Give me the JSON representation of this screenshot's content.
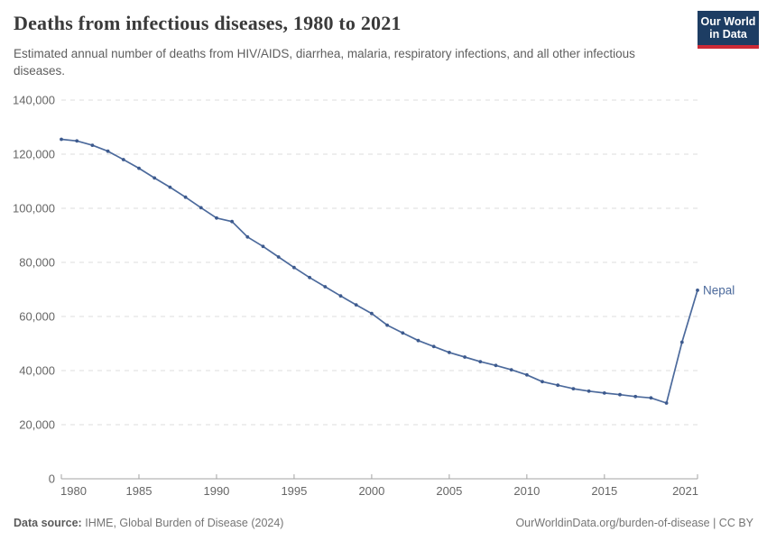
{
  "header": {
    "title": "Deaths from infectious diseases, 1980 to 2021",
    "subtitle": "Estimated annual number of deaths from HIV/AIDS, diarrhea, malaria, respiratory infections, and all other infectious diseases."
  },
  "logo": {
    "line1": "Our World",
    "line2": "in Data",
    "bg_color": "#1d3d63",
    "accent_color": "#cc2a36"
  },
  "chart_data": {
    "type": "line",
    "title": "Deaths from infectious diseases, 1980 to 2021",
    "entity_label": "Nepal",
    "line_color": "#4c6a9c",
    "marker_color": "#3d5a8e",
    "grid_color": "#dcdcdc",
    "axis_color": "#a3a3a3",
    "tick_label_color": "#666666",
    "grid": "horizontal-dashed",
    "legend_position": "line-end-label",
    "xlim": [
      1980,
      2021
    ],
    "ylim": [
      0,
      140000
    ],
    "x": [
      1980,
      1981,
      1982,
      1983,
      1984,
      1985,
      1986,
      1987,
      1988,
      1989,
      1990,
      1991,
      1992,
      1993,
      1994,
      1995,
      1996,
      1997,
      1998,
      1999,
      2000,
      2001,
      2002,
      2003,
      2004,
      2005,
      2006,
      2007,
      2008,
      2009,
      2010,
      2011,
      2012,
      2013,
      2014,
      2015,
      2016,
      2017,
      2018,
      2019,
      2020,
      2021
    ],
    "values": [
      125500,
      124900,
      123300,
      121100,
      118000,
      114800,
      111200,
      107800,
      104100,
      100200,
      96400,
      95100,
      89400,
      85900,
      82000,
      78100,
      74400,
      71000,
      67600,
      64300,
      61100,
      56800,
      53900,
      51100,
      48900,
      46700,
      45000,
      43300,
      41900,
      40300,
      38400,
      35900,
      34600,
      33300,
      32400,
      31700,
      31100,
      30400,
      29900,
      28000,
      50500,
      69700
    ],
    "x_ticks": [
      {
        "year": 1980,
        "label": "1980"
      },
      {
        "year": 1985,
        "label": "1985"
      },
      {
        "year": 1990,
        "label": "1990"
      },
      {
        "year": 1995,
        "label": "1995"
      },
      {
        "year": 2000,
        "label": "2000"
      },
      {
        "year": 2005,
        "label": "2005"
      },
      {
        "year": 2010,
        "label": "2010"
      },
      {
        "year": 2015,
        "label": "2015"
      },
      {
        "year": 2021,
        "label": "2021"
      }
    ],
    "y_ticks": [
      {
        "value": 0,
        "label": "0"
      },
      {
        "value": 20000,
        "label": "20,000"
      },
      {
        "value": 40000,
        "label": "40,000"
      },
      {
        "value": 60000,
        "label": "60,000"
      },
      {
        "value": 80000,
        "label": "80,000"
      },
      {
        "value": 100000,
        "label": "100,000"
      },
      {
        "value": 120000,
        "label": "120,000"
      },
      {
        "value": 140000,
        "label": "140,000"
      }
    ]
  },
  "footer": {
    "datasource_label": "Data source:",
    "datasource_value": "IHME, Global Burden of Disease (2024)",
    "right_text": "OurWorldinData.org/burden-of-disease | CC BY"
  }
}
